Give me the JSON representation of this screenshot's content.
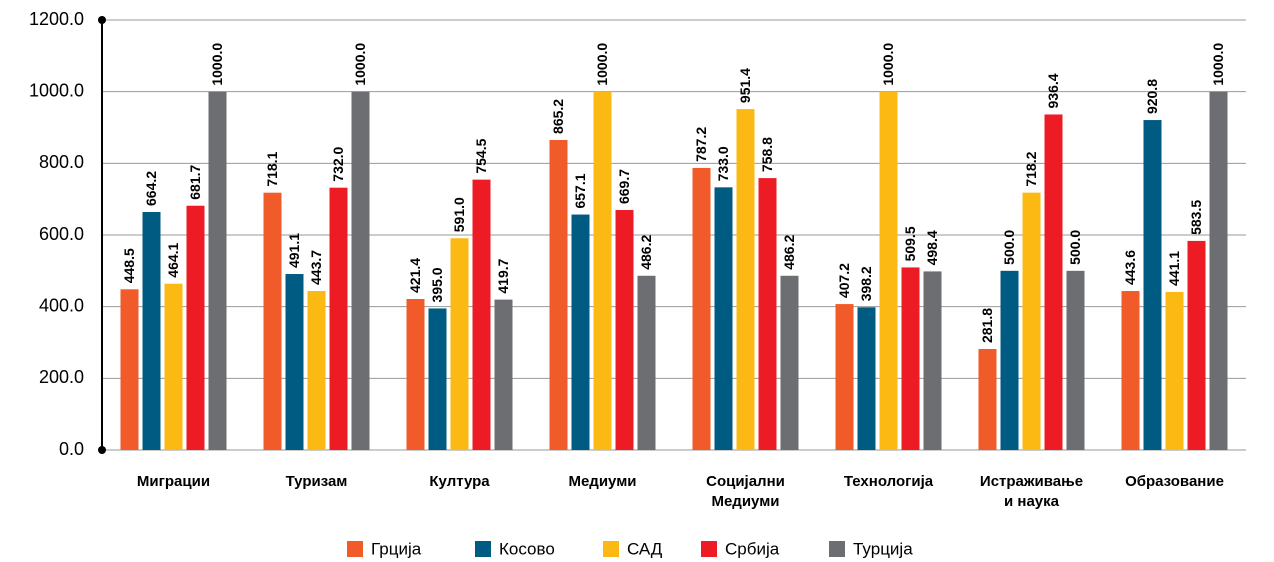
{
  "chart_data": {
    "type": "bar",
    "categories": [
      "Миграции",
      "Туризам",
      "Култура",
      "Медиуми",
      "Социјални\nМедиуми",
      "Технологија",
      "Истраживање\nи наука",
      "Образование"
    ],
    "series": [
      {
        "name": "Грција",
        "color": "#f15a29",
        "values": [
          448.5,
          718.1,
          421.4,
          865.2,
          787.2,
          407.2,
          281.8,
          443.6
        ],
        "value_labels": [
          "448.5",
          "718.1",
          "421.4",
          "865.2",
          "787.2",
          "407.2",
          "281.8",
          "443.6"
        ]
      },
      {
        "name": "Косово",
        "color": "#005b82",
        "values": [
          664.2,
          491.1,
          395.0,
          657.1,
          733.0,
          398.2,
          500.0,
          920.8
        ],
        "value_labels": [
          "664.2",
          "491.1",
          "395.0",
          "657.1",
          "733.0",
          "398.2",
          "500.0",
          "920.8"
        ]
      },
      {
        "name": "САД",
        "color": "#fdb913",
        "values": [
          464.1,
          443.7,
          591.0,
          1000.0,
          951.4,
          1000.0,
          718.2,
          441.1
        ],
        "value_labels": [
          "464.1",
          "443.7",
          "591.0",
          "1000.0",
          "951.4",
          "1000.0",
          "718.2",
          "441.1"
        ]
      },
      {
        "name": "Србија",
        "color": "#ed1c24",
        "values": [
          681.7,
          732.0,
          754.5,
          669.7,
          758.8,
          509.5,
          936.4,
          583.5
        ],
        "value_labels": [
          "681.7",
          "732.0",
          "754.5",
          "669.7",
          "758.8",
          "509.5",
          "936.4",
          "583.5"
        ]
      },
      {
        "name": "Турција",
        "color": "#6d6e71",
        "values": [
          1000.0,
          1000.0,
          419.7,
          486.2,
          486.2,
          498.4,
          500.0,
          1000.0
        ],
        "value_labels": [
          "1000.0",
          "1000.0",
          "419.7",
          "486.2",
          "486.2",
          "498.4",
          "500.0",
          "1000.0"
        ]
      }
    ],
    "ylim": [
      0,
      1200
    ],
    "yticks": [
      {
        "value": 0,
        "label": "0.0"
      },
      {
        "value": 200,
        "label": "200.0"
      },
      {
        "value": 400,
        "label": "400.0"
      },
      {
        "value": 600,
        "label": "600.0"
      },
      {
        "value": 800,
        "label": "800.0"
      },
      {
        "value": 1000,
        "label": "1000.0"
      },
      {
        "value": 1200,
        "label": "1200.0"
      }
    ],
    "grid": true,
    "legend": "bottom"
  }
}
